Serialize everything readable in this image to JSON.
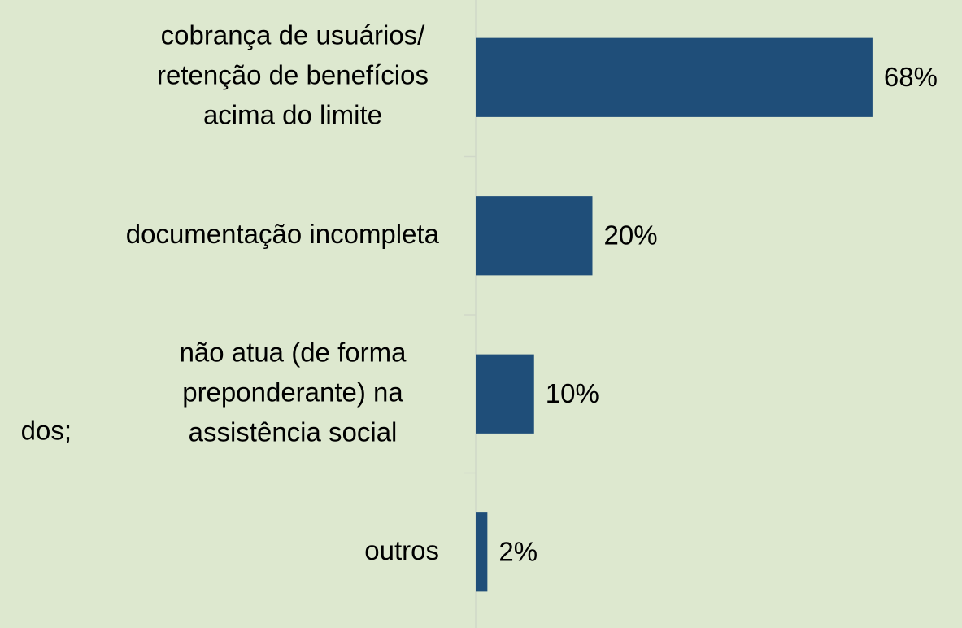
{
  "chart_data": {
    "type": "barh",
    "categories": [
      [
        "cobrança de usuários/",
        "retenção de benefícios",
        "acima do limite"
      ],
      [
        "documentação incompleta"
      ],
      [
        "não atua (de forma",
        "preponderante) na",
        "assistência social"
      ],
      [
        "outros"
      ]
    ],
    "values": [
      68,
      20,
      10,
      2
    ],
    "value_labels": [
      "68%",
      "20%",
      "10%",
      "2%"
    ],
    "color": "#1f4e79",
    "xlim": [
      0,
      80
    ],
    "annotations": [
      "dos;"
    ]
  }
}
